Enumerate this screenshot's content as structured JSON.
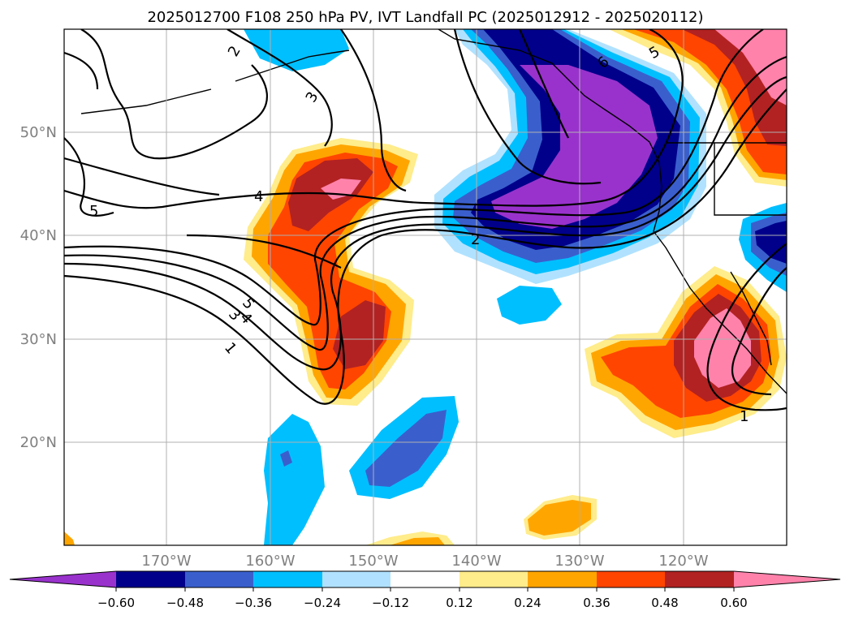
{
  "title": "2025012700 F108 250 hPa PV, IVT Landfall PC (2025012912 - 2025020112)",
  "lat_labels": [
    "50°N",
    "40°N",
    "30°N",
    "20°N"
  ],
  "lon_labels": [
    "170°W",
    "160°W",
    "150°W",
    "140°W",
    "130°W",
    "120°W"
  ],
  "contour_labels": [
    "2",
    "3",
    "4",
    "5",
    "5",
    "4",
    "3",
    "1",
    "2",
    "6",
    "5",
    "1"
  ],
  "colorbar": {
    "ticks": [
      "−0.60",
      "−0.48",
      "−0.36",
      "−0.24",
      "−0.12",
      "0.12",
      "0.24",
      "0.36",
      "0.48",
      "0.60"
    ],
    "colors": [
      "#9932cc",
      "#00008b",
      "#3a5fcd",
      "#00bfff",
      "#b0e2ff",
      "#ffffff",
      "#ffec8b",
      "#ffa500",
      "#ff4500",
      "#b22222",
      "#ff82ab"
    ]
  },
  "colors": {
    "grid": "#b0b0b0",
    "axis_label": "#808080",
    "contour": "#000000"
  }
}
